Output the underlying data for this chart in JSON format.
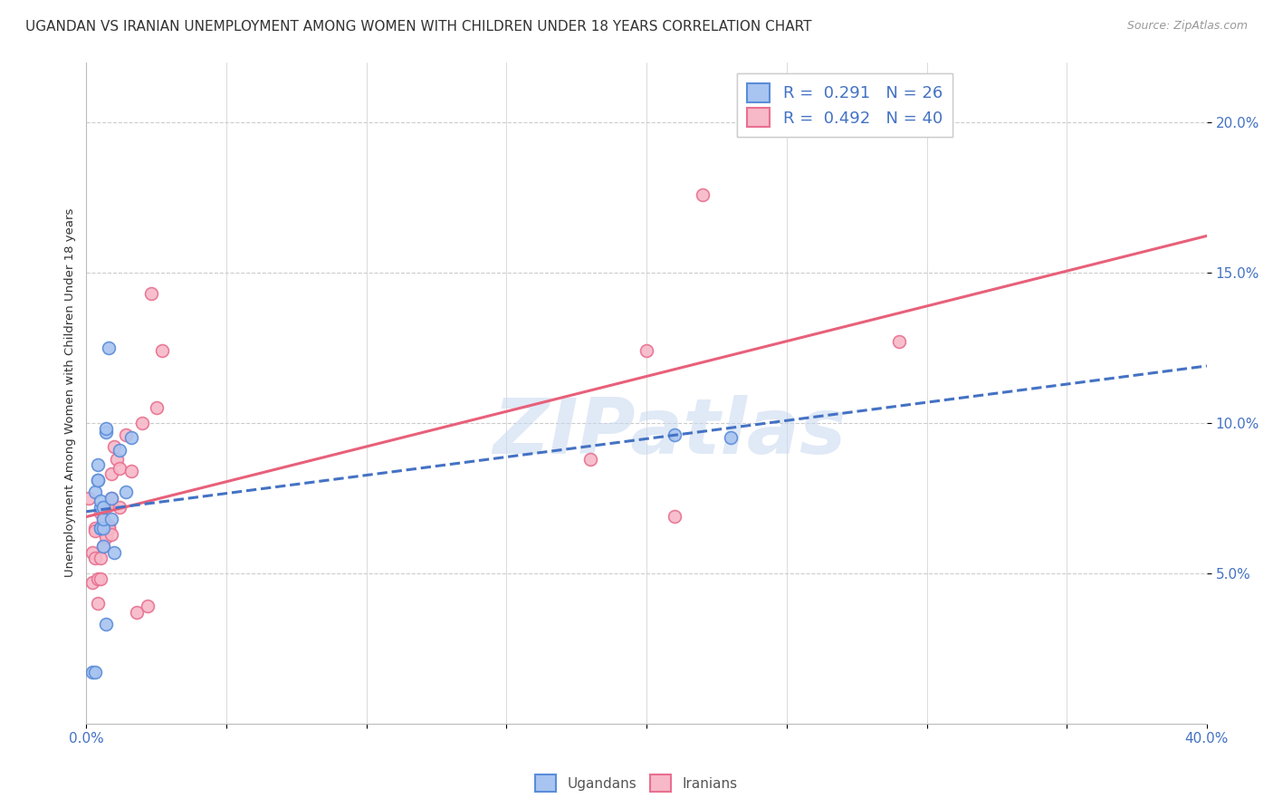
{
  "title": "UGANDAN VS IRANIAN UNEMPLOYMENT AMONG WOMEN WITH CHILDREN UNDER 18 YEARS CORRELATION CHART",
  "source": "Source: ZipAtlas.com",
  "ylabel": "Unemployment Among Women with Children Under 18 years",
  "xlim": [
    0.0,
    0.4
  ],
  "ylim": [
    0.0,
    0.22
  ],
  "xlabel_ticks_labels": [
    "0.0%",
    "",
    "",
    "",
    "",
    "",
    "",
    "",
    "40.0%"
  ],
  "xlabel_tick_vals": [
    0.0,
    0.05,
    0.1,
    0.15,
    0.2,
    0.25,
    0.3,
    0.35,
    0.4
  ],
  "ylabel_vals": [
    0.05,
    0.1,
    0.15,
    0.2
  ],
  "ylabel_ticks": [
    "5.0%",
    "10.0%",
    "15.0%",
    "20.0%"
  ],
  "ugandan_color": "#a8c4f0",
  "iranian_color": "#f7b8c8",
  "ugandan_edge_color": "#5b8dd9",
  "iranian_edge_color": "#e87090",
  "ugandan_line_color": "#4472c4",
  "iranian_line_color": "#e8607a",
  "legend_label_1": "R =  0.291   N = 26",
  "legend_label_2": "R =  0.492   N = 40",
  "legend_label_ugandan": "Ugandans",
  "legend_label_iranian": "Iranians",
  "watermark_text": "ZIPatlas",
  "ugandan_x": [
    0.002,
    0.003,
    0.003,
    0.004,
    0.004,
    0.004,
    0.005,
    0.005,
    0.005,
    0.005,
    0.006,
    0.006,
    0.006,
    0.006,
    0.007,
    0.007,
    0.007,
    0.008,
    0.009,
    0.009,
    0.01,
    0.012,
    0.014,
    0.016,
    0.21,
    0.23
  ],
  "ugandan_y": [
    0.017,
    0.017,
    0.077,
    0.081,
    0.081,
    0.086,
    0.065,
    0.065,
    0.072,
    0.074,
    0.065,
    0.068,
    0.059,
    0.072,
    0.097,
    0.033,
    0.098,
    0.125,
    0.068,
    0.075,
    0.057,
    0.091,
    0.077,
    0.095,
    0.096,
    0.095
  ],
  "iranian_x": [
    0.001,
    0.002,
    0.002,
    0.003,
    0.003,
    0.003,
    0.004,
    0.004,
    0.005,
    0.005,
    0.005,
    0.006,
    0.006,
    0.007,
    0.007,
    0.007,
    0.008,
    0.008,
    0.008,
    0.009,
    0.009,
    0.009,
    0.009,
    0.01,
    0.011,
    0.012,
    0.012,
    0.014,
    0.016,
    0.018,
    0.02,
    0.022,
    0.023,
    0.025,
    0.027,
    0.18,
    0.2,
    0.21,
    0.22,
    0.29
  ],
  "iranian_y": [
    0.075,
    0.057,
    0.047,
    0.065,
    0.055,
    0.064,
    0.04,
    0.048,
    0.07,
    0.055,
    0.048,
    0.068,
    0.059,
    0.063,
    0.072,
    0.062,
    0.065,
    0.066,
    0.065,
    0.063,
    0.073,
    0.075,
    0.083,
    0.092,
    0.088,
    0.072,
    0.085,
    0.096,
    0.084,
    0.037,
    0.1,
    0.039,
    0.143,
    0.105,
    0.124,
    0.088,
    0.124,
    0.069,
    0.176,
    0.127
  ],
  "background_color": "#ffffff",
  "grid_color": "#cccccc",
  "title_fontsize": 11,
  "axis_label_fontsize": 9.5,
  "tick_fontsize": 11,
  "marker_size": 100,
  "marker_linewidth": 1.2,
  "tick_color": "#4472c4"
}
